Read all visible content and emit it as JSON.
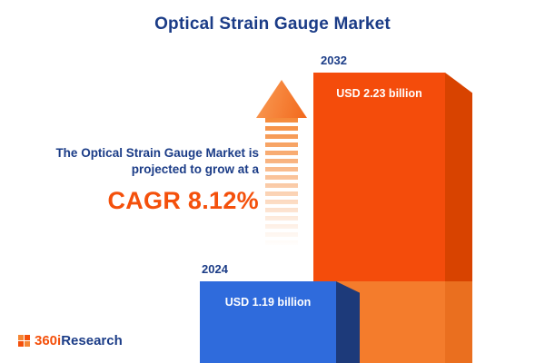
{
  "title": "Optical Strain Gauge Market",
  "annotation": {
    "line1": "The Optical Strain Gauge Market is",
    "line2": "projected to grow at a",
    "cagr": "CAGR 8.12%"
  },
  "logo": {
    "part1": "360i",
    "part2": "Research"
  },
  "chart_data": {
    "type": "bar",
    "title": "Optical Strain Gauge Market",
    "categories": [
      "2024",
      "2032"
    ],
    "values": [
      1.19,
      2.23
    ],
    "unit": "USD billion",
    "value_labels": [
      "USD 1.19  billion",
      "USD 2.23 billion"
    ],
    "growth_annotation": "The Optical Strain Gauge Market is projected to grow at a CAGR 8.12%",
    "cagr_percent": 8.12,
    "legend_position": "none",
    "grid": false,
    "colors": {
      "bar_2024_front": "#2f6bdc",
      "bar_2024_side": "#1d3a7a",
      "bar_2032_front": "#f44c0b",
      "bar_2032_front_lower": "#f47c2c",
      "bar_2032_side": "#d84300",
      "arrow_accent": "#f58634",
      "navy_text": "#1b3c87",
      "cagr_orange": "#f4500b"
    }
  }
}
